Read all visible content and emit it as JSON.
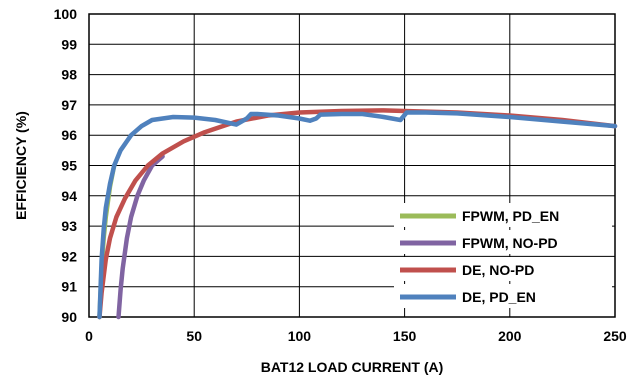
{
  "chart_data": {
    "type": "line",
    "title": "",
    "xlabel": "BAT12 LOAD CURRENT (A)",
    "ylabel": "EFFICIENCY (%)",
    "xlim": [
      0,
      250
    ],
    "ylim": [
      90,
      100
    ],
    "xticks": [
      0,
      50,
      100,
      150,
      200,
      250
    ],
    "yticks": [
      90,
      91,
      92,
      93,
      94,
      95,
      96,
      97,
      98,
      99,
      100
    ],
    "grid": true,
    "legend_position": "bottom-right",
    "series": [
      {
        "name": "FPWM, PD_EN",
        "color": "#9bbb59",
        "x": [
          5,
          6,
          7,
          8,
          10,
          12
        ],
        "y": [
          90.0,
          91.6,
          92.6,
          93.3,
          94.3,
          95.0
        ]
      },
      {
        "name": "FPWM, NO-PD",
        "color": "#8064a2",
        "x": [
          14,
          15,
          16,
          18,
          20,
          23,
          26,
          30,
          35
        ],
        "y": [
          90.0,
          90.9,
          91.6,
          92.6,
          93.3,
          94.0,
          94.5,
          95.0,
          95.3
        ]
      },
      {
        "name": "DE, NO-PD",
        "color": "#c0504d",
        "x": [
          5,
          6,
          8,
          10,
          13,
          17,
          22,
          28,
          35,
          45,
          55,
          70,
          85,
          100,
          120,
          140,
          150,
          175,
          200,
          225,
          250
        ],
        "y": [
          90.0,
          90.8,
          91.9,
          92.6,
          93.3,
          93.9,
          94.5,
          95.0,
          95.4,
          95.8,
          96.1,
          96.45,
          96.65,
          96.75,
          96.8,
          96.82,
          96.8,
          96.75,
          96.65,
          96.5,
          96.3
        ]
      },
      {
        "name": "DE, PD_EN",
        "color": "#4f81bd",
        "x": [
          5,
          6,
          7,
          8,
          10,
          12,
          15,
          20,
          25,
          30,
          40,
          50,
          60,
          70,
          75,
          77,
          80,
          90,
          100,
          105,
          108,
          110,
          120,
          130,
          140,
          148,
          151,
          160,
          175,
          200,
          225,
          250
        ],
        "y": [
          90.0,
          91.9,
          92.9,
          93.6,
          94.4,
          95.0,
          95.5,
          96.0,
          96.3,
          96.5,
          96.6,
          96.58,
          96.5,
          96.35,
          96.55,
          96.7,
          96.7,
          96.65,
          96.55,
          96.48,
          96.55,
          96.68,
          96.7,
          96.7,
          96.6,
          96.5,
          96.75,
          96.75,
          96.72,
          96.6,
          96.45,
          96.3
        ]
      }
    ]
  }
}
